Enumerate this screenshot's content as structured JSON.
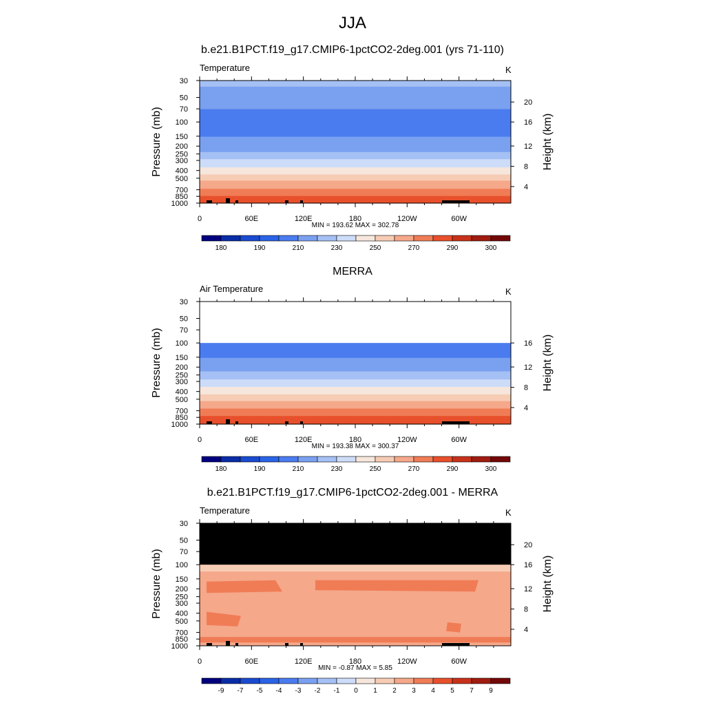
{
  "main_title": "JJA",
  "chart_data": [
    {
      "type": "heatmap",
      "title": "b.e21.B1PCT.f19_g17.CMIP6-1pctCO2-2deg.001 (yrs 71-110)",
      "left_label": "Temperature",
      "units": "K",
      "xlabel": "",
      "ylabel": "Pressure (mb)",
      "ylabel_right": "Height (km)",
      "x_ticks": [
        "0",
        "60E",
        "120E",
        "180",
        "120W",
        "60W"
      ],
      "x_tick_values": [
        0,
        60,
        120,
        180,
        240,
        300
      ],
      "xlim": [
        0,
        360
      ],
      "y_ticks": [
        30,
        50,
        70,
        100,
        150,
        200,
        250,
        300,
        400,
        500,
        700,
        850,
        1000
      ],
      "ylim_mb": [
        30,
        1000
      ],
      "y_scale": "log",
      "right_ticks": [
        4,
        8,
        12,
        16,
        20
      ],
      "stats": "MIN = 193.62  MAX = 302.78",
      "colorbar_ticks": [
        "180",
        "190",
        "210",
        "230",
        "250",
        "270",
        "290",
        "300"
      ],
      "profile_levels_mb": [
        30,
        50,
        70,
        100,
        150,
        200,
        250,
        300,
        400,
        500,
        700,
        850,
        1000
      ],
      "profile_values_K": [
        222,
        216,
        210,
        204,
        210,
        215,
        223,
        232,
        245,
        257,
        272,
        282,
        290
      ],
      "missing_above_mb": null
    },
    {
      "type": "heatmap",
      "title": "MERRA",
      "left_label": "Air Temperature",
      "units": "K",
      "xlabel": "",
      "ylabel": "Pressure (mb)",
      "ylabel_right": "Height (km)",
      "x_ticks": [
        "0",
        "60E",
        "120E",
        "180",
        "120W",
        "60W"
      ],
      "x_tick_values": [
        0,
        60,
        120,
        180,
        240,
        300
      ],
      "xlim": [
        0,
        360
      ],
      "y_ticks": [
        30,
        50,
        70,
        100,
        150,
        200,
        250,
        300,
        400,
        500,
        700,
        850,
        1000
      ],
      "ylim_mb": [
        30,
        1000
      ],
      "y_scale": "log",
      "right_ticks": [
        4,
        8,
        12,
        16
      ],
      "stats": "MIN = 193.38  MAX = 300.37",
      "colorbar_ticks": [
        "180",
        "190",
        "210",
        "230",
        "250",
        "270",
        "290",
        "300"
      ],
      "profile_levels_mb": [
        100,
        150,
        200,
        250,
        300,
        400,
        500,
        700,
        850,
        1000
      ],
      "profile_values_K": [
        203,
        210,
        216,
        224,
        233,
        246,
        258,
        273,
        282,
        290
      ],
      "missing_above_mb": 100
    },
    {
      "type": "heatmap",
      "title": "b.e21.B1PCT.f19_g17.CMIP6-1pctCO2-2deg.001 - MERRA",
      "left_label": "Temperature",
      "units": "K",
      "xlabel": "",
      "ylabel": "Pressure (mb)",
      "ylabel_right": "Height (km)",
      "x_ticks": [
        "0",
        "60E",
        "120E",
        "180",
        "120W",
        "60W"
      ],
      "x_tick_values": [
        0,
        60,
        120,
        180,
        240,
        300
      ],
      "xlim": [
        0,
        360
      ],
      "y_ticks": [
        30,
        50,
        70,
        100,
        150,
        200,
        250,
        300,
        400,
        500,
        700,
        850,
        1000
      ],
      "ylim_mb": [
        30,
        1000
      ],
      "y_scale": "log",
      "right_ticks": [
        4,
        8,
        12,
        16,
        20
      ],
      "stats": "MIN =  -0.87  MAX =   5.85",
      "colorbar_ticks": [
        "-9",
        "-7",
        "-5",
        "-4",
        "-3",
        "-2",
        "-1",
        "0",
        "1",
        "2",
        "3",
        "4",
        "5",
        "7",
        "9"
      ],
      "dominant_range_K": [
        2,
        3
      ],
      "patches_3_to_4_K": "near 150-200 mb, 400-500 mb and near surface",
      "missing_above_mb": 100
    }
  ],
  "colors": {
    "scale": [
      "#00007f",
      "#0a2ca6",
      "#1a4bd0",
      "#2a63e6",
      "#4a7cf0",
      "#7aa0f0",
      "#a5c0f4",
      "#cddcf8",
      "#f6e6dc",
      "#f7ccb4",
      "#f5a88a",
      "#f07c56",
      "#e8502c",
      "#c8321a",
      "#a01c10",
      "#730808"
    ],
    "missing": "#000000"
  }
}
